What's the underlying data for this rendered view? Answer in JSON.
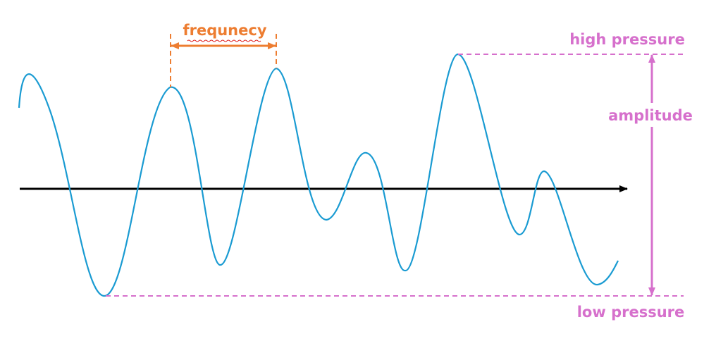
{
  "labels": {
    "frequency": "frequnecy",
    "high_pressure": "high pressure",
    "amplitude": "amplitude",
    "low_pressure": "low pressure"
  },
  "colors": {
    "wave": "#1a9bd2",
    "axis": "#000000",
    "frequency": "#ed7d31",
    "pressure": "#d670cc"
  },
  "wave_shape": "sinusoidal wave with irregular peaks and troughs crossing a horizontal axis"
}
